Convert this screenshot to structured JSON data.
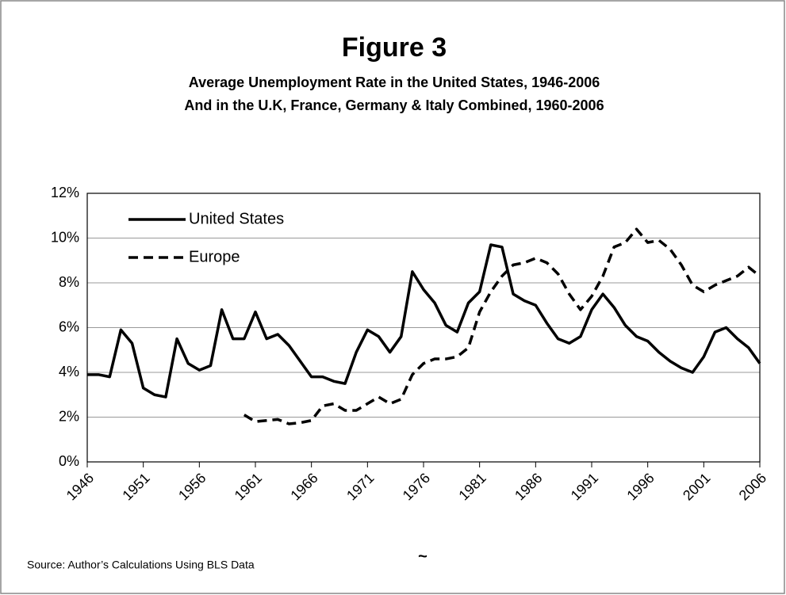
{
  "chart_data": {
    "type": "line",
    "title": "Figure 3",
    "subtitle": [
      "Average Unemployment Rate in the United States, 1946-2006",
      "And in the U.K, France, Germany & Italy Combined, 1960-2006"
    ],
    "x": [
      1946,
      1947,
      1948,
      1949,
      1950,
      1951,
      1952,
      1953,
      1954,
      1955,
      1956,
      1957,
      1958,
      1959,
      1960,
      1961,
      1962,
      1963,
      1964,
      1965,
      1966,
      1967,
      1968,
      1969,
      1970,
      1971,
      1972,
      1973,
      1974,
      1975,
      1976,
      1977,
      1978,
      1979,
      1980,
      1981,
      1982,
      1983,
      1984,
      1985,
      1986,
      1987,
      1988,
      1989,
      1990,
      1991,
      1992,
      1993,
      1994,
      1995,
      1996,
      1997,
      1998,
      1999,
      2000,
      2001,
      2002,
      2003,
      2004,
      2005,
      2006
    ],
    "series": [
      {
        "name": "United States",
        "color": "#000000",
        "dash": "solid",
        "values": [
          3.9,
          3.9,
          3.8,
          5.9,
          5.3,
          3.3,
          3.0,
          2.9,
          5.5,
          4.4,
          4.1,
          4.3,
          6.8,
          5.5,
          5.5,
          6.7,
          5.5,
          5.7,
          5.2,
          4.5,
          3.8,
          3.8,
          3.6,
          3.5,
          4.9,
          5.9,
          5.6,
          4.9,
          5.6,
          8.5,
          7.7,
          7.1,
          6.1,
          5.8,
          7.1,
          7.6,
          9.7,
          9.6,
          7.5,
          7.2,
          7.0,
          6.2,
          5.5,
          5.3,
          5.6,
          6.8,
          7.5,
          6.9,
          6.1,
          5.6,
          5.4,
          4.9,
          4.5,
          4.2,
          4.0,
          4.7,
          5.8,
          6.0,
          5.5,
          5.1,
          4.4
        ]
      },
      {
        "name": "Europe",
        "color": "#000000",
        "dash": "dashed",
        "values": [
          null,
          null,
          null,
          null,
          null,
          null,
          null,
          null,
          null,
          null,
          null,
          null,
          null,
          null,
          2.1,
          1.8,
          1.85,
          1.9,
          1.7,
          1.75,
          1.85,
          2.5,
          2.6,
          2.3,
          2.3,
          2.6,
          2.9,
          2.6,
          2.8,
          3.9,
          4.4,
          4.6,
          4.6,
          4.7,
          5.1,
          6.7,
          7.6,
          8.3,
          8.8,
          8.9,
          9.1,
          8.9,
          8.4,
          7.5,
          6.8,
          7.4,
          8.3,
          9.6,
          9.8,
          10.4,
          9.8,
          9.9,
          9.5,
          8.8,
          7.9,
          7.6,
          7.9,
          8.1,
          8.3,
          8.7,
          8.3
        ]
      }
    ],
    "xlim": [
      1946,
      2006
    ],
    "xticks": [
      1946,
      1951,
      1956,
      1961,
      1966,
      1971,
      1976,
      1981,
      1986,
      1991,
      1996,
      2001,
      2006
    ],
    "ylim": [
      0,
      12
    ],
    "yticks": [
      {
        "value": 0,
        "label": "0%"
      },
      {
        "value": 2,
        "label": "2%"
      },
      {
        "value": 4,
        "label": "4%"
      },
      {
        "value": 6,
        "label": "6%"
      },
      {
        "value": 8,
        "label": "8%"
      },
      {
        "value": 10,
        "label": "10%"
      },
      {
        "value": 12,
        "label": "12%"
      }
    ],
    "grid": true,
    "legend": "top-left",
    "annotations": [
      "~",
      "Source: Author’s Calculations Using BLS Data"
    ]
  }
}
